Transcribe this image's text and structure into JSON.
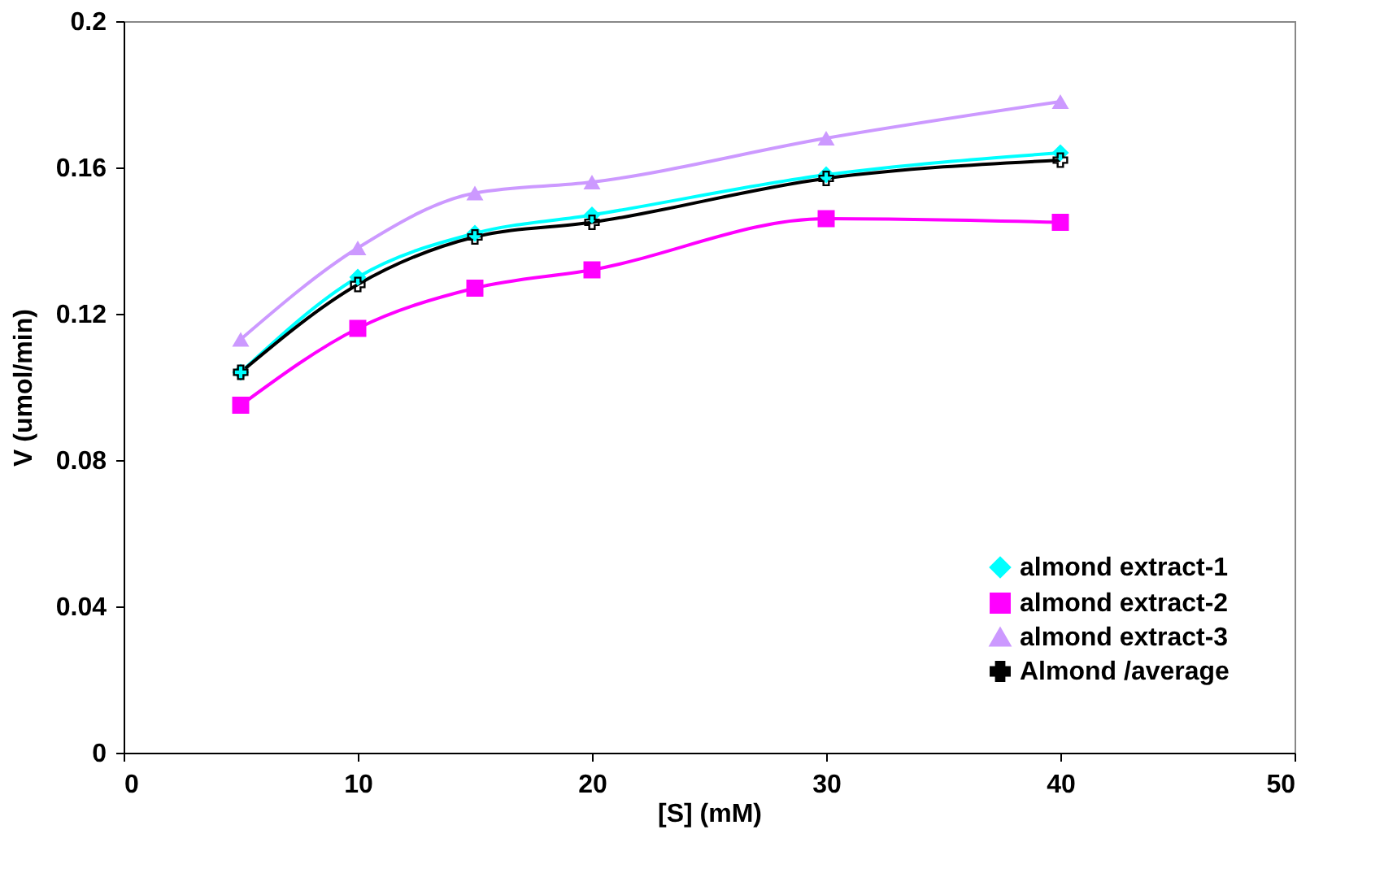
{
  "chart_data": {
    "type": "line",
    "xlabel": "[S] (mM)",
    "ylabel": "V (umol/min)",
    "x": [
      5,
      10,
      15,
      20,
      30,
      40
    ],
    "series": [
      {
        "name": "almond extract-1",
        "color": "#00ffff",
        "marker": "diamond",
        "values": [
          0.104,
          0.13,
          0.142,
          0.147,
          0.158,
          0.164
        ]
      },
      {
        "name": "almond extract-2",
        "color": "#ff00ff",
        "marker": "square",
        "values": [
          0.095,
          0.116,
          0.127,
          0.132,
          0.146,
          0.145
        ]
      },
      {
        "name": "almond extract-3",
        "color": "#cc99ff",
        "marker": "triangle",
        "values": [
          0.113,
          0.138,
          0.153,
          0.156,
          0.168,
          0.178
        ]
      },
      {
        "name": "Almond /average",
        "color": "#000000",
        "marker": "cross",
        "values": [
          0.104,
          0.128,
          0.141,
          0.145,
          0.157,
          0.162
        ]
      }
    ],
    "xlim": [
      0,
      50
    ],
    "xticks": [
      0,
      10,
      20,
      30,
      40,
      50
    ],
    "ylim": [
      0,
      0.2
    ],
    "yticks": [
      0,
      0.04,
      0.08,
      0.12,
      0.16,
      0.2
    ],
    "grid": false,
    "legend": "bottom right",
    "line_style": "solid"
  }
}
